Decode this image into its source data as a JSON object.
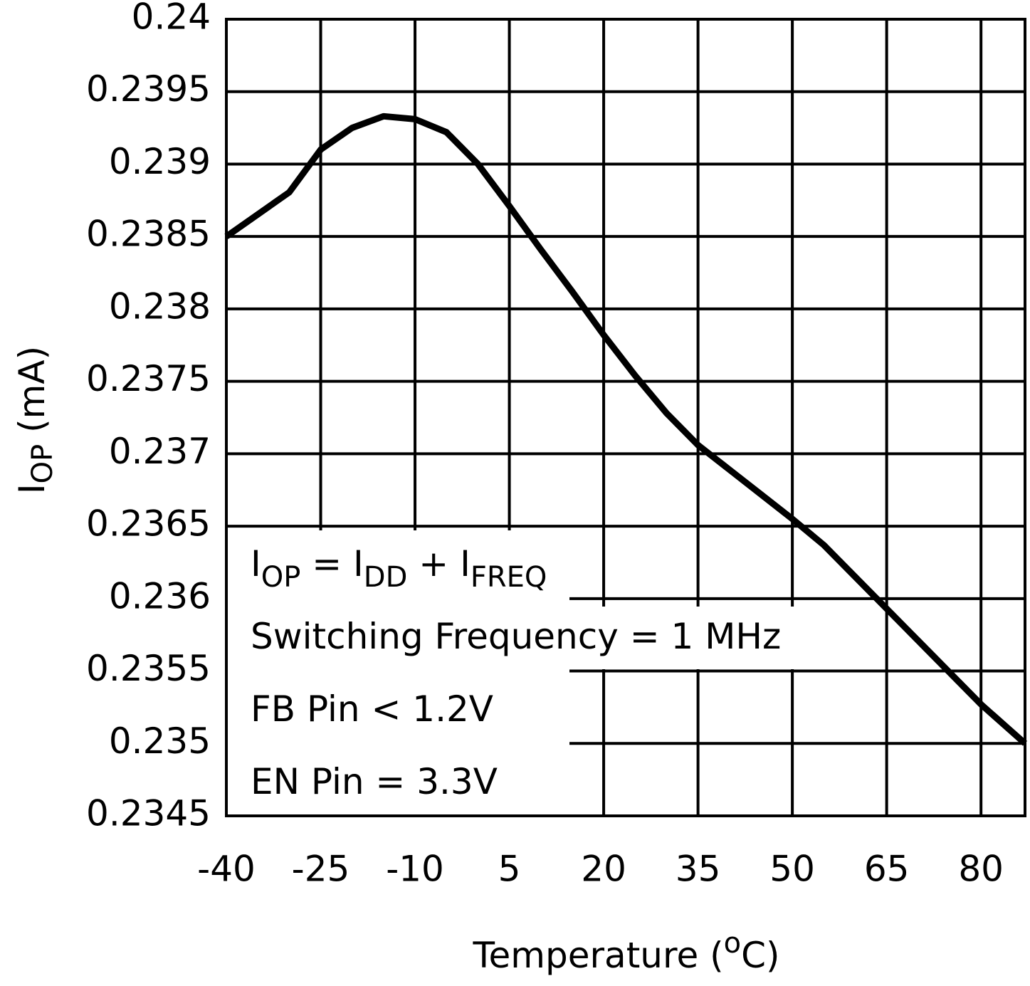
{
  "chart_data": {
    "type": "line",
    "xlabel": [
      "Temperature (",
      "o",
      "C)"
    ],
    "ylabel": [
      "I",
      "OP",
      " (mA)"
    ],
    "annotations": [
      [
        "I",
        "OP",
        " = I",
        "DD",
        " + I",
        "FREQ"
      ],
      [
        "Switching Frequency = 1 MHz"
      ],
      [
        "FB Pin < 1.2V"
      ],
      [
        "EN Pin = 3.3V"
      ]
    ],
    "x": [
      -40,
      -30,
      -25,
      -20,
      -15,
      -10,
      -5,
      0,
      5,
      10,
      15,
      20,
      25,
      30,
      35,
      40,
      45,
      50,
      55,
      60,
      65,
      70,
      75,
      80,
      87
    ],
    "series": [
      {
        "color": "#000000",
        "values": [
          0.2385,
          0.238805,
          0.2391,
          0.23925,
          0.23933,
          0.23931,
          0.23922,
          0.239,
          0.23871,
          0.23841,
          0.23812,
          0.23782,
          0.23754,
          0.23728,
          0.23706,
          0.23689,
          0.23672,
          0.23655,
          0.23637,
          0.23615,
          0.23593,
          0.23571,
          0.23549,
          0.23527,
          0.235
        ]
      }
    ],
    "xlim": [
      -40,
      87
    ],
    "xticks": [
      -40,
      -25,
      -10,
      5,
      20,
      35,
      50,
      65,
      80
    ],
    "ylim": [
      0.2345,
      0.24
    ],
    "yticks": [
      0.2345,
      0.235,
      0.2355,
      0.236,
      0.2365,
      0.237,
      0.2375,
      0.238,
      0.2385,
      0.239,
      0.2395,
      0.24
    ],
    "grid": true
  }
}
